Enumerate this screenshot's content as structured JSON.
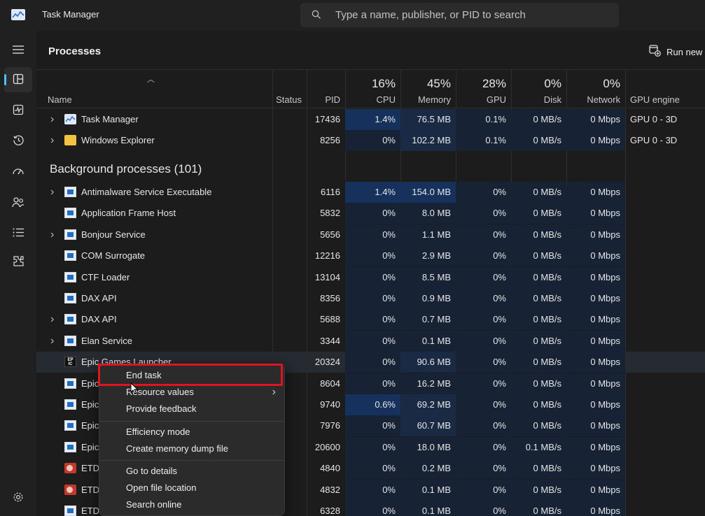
{
  "app": {
    "title": "Task Manager",
    "search_placeholder": "Type a name, publisher, or PID to search"
  },
  "nav": {
    "icons": [
      "hamburger-menu-icon",
      "processes-icon",
      "performance-icon",
      "app-history-icon",
      "startup-apps-icon",
      "users-icon",
      "details-icon",
      "services-icon",
      "settings-icon"
    ],
    "active": "processes-icon",
    "accent": "#4cc2ff"
  },
  "page": {
    "title": "Processes",
    "run_new_label": "Run new"
  },
  "columns": {
    "name": "Name",
    "status": "Status",
    "pid": "PID",
    "cpu": {
      "pct": "16%",
      "label": "CPU"
    },
    "memory": {
      "pct": "45%",
      "label": "Memory"
    },
    "gpu": {
      "pct": "28%",
      "label": "GPU"
    },
    "disk": {
      "pct": "0%",
      "label": "Disk"
    },
    "network": {
      "pct": "0%",
      "label": "Network"
    },
    "gpu_engine": "GPU engine"
  },
  "apps": [
    {
      "name": "Task Manager",
      "icon": "task-manager",
      "expand": true,
      "pid": "17436",
      "cpu": "1.4%",
      "mem": "76.5 MB",
      "gpu": "0.1%",
      "disk": "0 MB/s",
      "net": "0 Mbps",
      "gpu_engine": "GPU 0 - 3D"
    },
    {
      "name": "Windows Explorer",
      "icon": "folder",
      "expand": true,
      "pid": "8256",
      "cpu": "0%",
      "mem": "102.2 MB",
      "gpu": "0.1%",
      "disk": "0 MB/s",
      "net": "0 Mbps",
      "gpu_engine": "GPU 0 - 3D"
    }
  ],
  "background": {
    "title": "Background processes (101)",
    "rows": [
      {
        "name": "Antimalware Service Executable",
        "icon": "win",
        "expand": true,
        "pid": "6116",
        "cpu": "1.4%",
        "mem": "154.0 MB",
        "gpu": "0%",
        "disk": "0 MB/s",
        "net": "0 Mbps",
        "gpu_engine": ""
      },
      {
        "name": "Application Frame Host",
        "icon": "win",
        "expand": false,
        "pid": "5832",
        "cpu": "0%",
        "mem": "8.0 MB",
        "gpu": "0%",
        "disk": "0 MB/s",
        "net": "0 Mbps",
        "gpu_engine": ""
      },
      {
        "name": "Bonjour Service",
        "icon": "win",
        "expand": true,
        "pid": "5656",
        "cpu": "0%",
        "mem": "1.1 MB",
        "gpu": "0%",
        "disk": "0 MB/s",
        "net": "0 Mbps",
        "gpu_engine": ""
      },
      {
        "name": "COM Surrogate",
        "icon": "win",
        "expand": false,
        "pid": "12216",
        "cpu": "0%",
        "mem": "2.9 MB",
        "gpu": "0%",
        "disk": "0 MB/s",
        "net": "0 Mbps",
        "gpu_engine": ""
      },
      {
        "name": "CTF Loader",
        "icon": "win",
        "expand": false,
        "pid": "13104",
        "cpu": "0%",
        "mem": "8.5 MB",
        "gpu": "0%",
        "disk": "0 MB/s",
        "net": "0 Mbps",
        "gpu_engine": ""
      },
      {
        "name": "DAX API",
        "icon": "win",
        "expand": false,
        "pid": "8356",
        "cpu": "0%",
        "mem": "0.9 MB",
        "gpu": "0%",
        "disk": "0 MB/s",
        "net": "0 Mbps",
        "gpu_engine": ""
      },
      {
        "name": "DAX API",
        "icon": "win",
        "expand": true,
        "pid": "5688",
        "cpu": "0%",
        "mem": "0.7 MB",
        "gpu": "0%",
        "disk": "0 MB/s",
        "net": "0 Mbps",
        "gpu_engine": ""
      },
      {
        "name": "Elan Service",
        "icon": "win",
        "expand": true,
        "pid": "3344",
        "cpu": "0%",
        "mem": "0.1 MB",
        "gpu": "0%",
        "disk": "0 MB/s",
        "net": "0 Mbps",
        "gpu_engine": ""
      },
      {
        "name": "Epic Games Launcher",
        "icon": "epic",
        "expand": false,
        "pid": "20324",
        "cpu": "0%",
        "mem": "90.6 MB",
        "gpu": "0%",
        "disk": "0 MB/s",
        "net": "0 Mbps",
        "gpu_engine": "",
        "selected": true
      },
      {
        "name": "Epic",
        "icon": "win",
        "expand": false,
        "pid": "8604",
        "cpu": "0%",
        "mem": "16.2 MB",
        "gpu": "0%",
        "disk": "0 MB/s",
        "net": "0 Mbps",
        "gpu_engine": ""
      },
      {
        "name": "Epic",
        "icon": "win",
        "expand": false,
        "pid": "9740",
        "cpu": "0.6%",
        "mem": "69.2 MB",
        "gpu": "0%",
        "disk": "0 MB/s",
        "net": "0 Mbps",
        "gpu_engine": ""
      },
      {
        "name": "Epic",
        "icon": "win",
        "expand": false,
        "pid": "7976",
        "cpu": "0%",
        "mem": "60.7 MB",
        "gpu": "0%",
        "disk": "0 MB/s",
        "net": "0 Mbps",
        "gpu_engine": ""
      },
      {
        "name": "Epic",
        "icon": "win",
        "expand": false,
        "pid": "20600",
        "cpu": "0%",
        "mem": "18.0 MB",
        "gpu": "0%",
        "disk": "0.1 MB/s",
        "net": "0 Mbps",
        "gpu_engine": ""
      },
      {
        "name": "ETD",
        "icon": "etd",
        "expand": false,
        "pid": "4840",
        "cpu": "0%",
        "mem": "0.2 MB",
        "gpu": "0%",
        "disk": "0 MB/s",
        "net": "0 Mbps",
        "gpu_engine": ""
      },
      {
        "name": "ETD",
        "icon": "etd",
        "expand": false,
        "pid": "4832",
        "cpu": "0%",
        "mem": "0.1 MB",
        "gpu": "0%",
        "disk": "0 MB/s",
        "net": "0 Mbps",
        "gpu_engine": ""
      },
      {
        "name": "ETD",
        "icon": "win",
        "expand": false,
        "pid": "6328",
        "cpu": "0%",
        "mem": "0.1 MB",
        "gpu": "0%",
        "disk": "0 MB/s",
        "net": "0 Mbps",
        "gpu_engine": ""
      }
    ]
  },
  "context_menu": {
    "items": [
      {
        "label": "End task",
        "group": 1,
        "highlighted": true
      },
      {
        "label": "Resource values",
        "group": 1,
        "submenu": true
      },
      {
        "label": "Provide feedback",
        "group": 1
      },
      {
        "label": "Efficiency mode",
        "group": 2
      },
      {
        "label": "Create memory dump file",
        "group": 2
      },
      {
        "label": "Go to details",
        "group": 3
      },
      {
        "label": "Open file location",
        "group": 3
      },
      {
        "label": "Search online",
        "group": 3
      }
    ],
    "highlight_color": "#e0141e"
  },
  "colors": {
    "heat_strong": "#16325c",
    "heat_light": "#172235",
    "heat_faint": "#1a2130"
  }
}
